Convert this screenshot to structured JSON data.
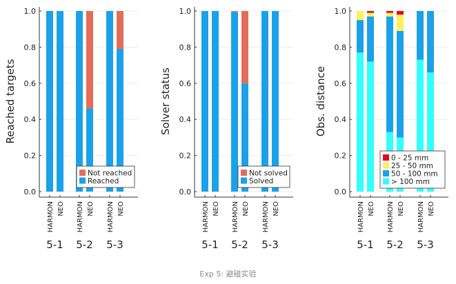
{
  "caption": "Exp 5: 避碰实验",
  "colors": {
    "blue": "#1ba1e9",
    "orange": "#e26d5a",
    "cyan": "#33fefe",
    "yellow": "#ffef5c",
    "red": "#e3081d",
    "axis": "#333333",
    "grid": "#ececec"
  },
  "chart_data": [
    {
      "type": "bar",
      "stacked": true,
      "ylabel": "Reached targets",
      "ylim": [
        0,
        1
      ],
      "yticks": [
        "0.0",
        "0.2",
        "0.4",
        "0.6",
        "0.8",
        "1.0"
      ],
      "categories": [
        "HARMON",
        "NEO",
        "HARMON",
        "NEO",
        "HARMON",
        "NEO"
      ],
      "groups": [
        "5-1",
        "5-2",
        "5-3"
      ],
      "grid": true,
      "legend_position": "bottom-right",
      "series": [
        {
          "name": "Reached",
          "color": "#1ba1e9",
          "values": [
            1.0,
            1.0,
            1.0,
            0.46,
            1.0,
            0.79
          ]
        },
        {
          "name": "Not reached",
          "color": "#e26d5a",
          "values": [
            0,
            0,
            0,
            0.54,
            0,
            0.21
          ]
        }
      ],
      "legend": [
        "Not reached",
        "Reached"
      ]
    },
    {
      "type": "bar",
      "stacked": true,
      "ylabel": "Solver status",
      "ylim": [
        0,
        1
      ],
      "yticks": [
        "0.0",
        "0.2",
        "0.4",
        "0.6",
        "0.8",
        "1.0"
      ],
      "categories": [
        "HARMON",
        "NEO",
        "HARMON",
        "NEO",
        "HARMON",
        "NEO"
      ],
      "groups": [
        "5-1",
        "5-2",
        "5-3"
      ],
      "grid": true,
      "legend_position": "bottom-right",
      "series": [
        {
          "name": "Solved",
          "color": "#1ba1e9",
          "values": [
            1.0,
            1.0,
            0.995,
            0.6,
            1.0,
            1.0
          ]
        },
        {
          "name": "Not solved",
          "color": "#e26d5a",
          "values": [
            0,
            0,
            0.005,
            0.4,
            0,
            0
          ]
        }
      ],
      "legend": [
        "Not solved",
        "Solved"
      ]
    },
    {
      "type": "bar",
      "stacked": true,
      "ylabel": "Obs. distance",
      "ylim": [
        0,
        1
      ],
      "yticks": [
        "0.0",
        "0.2",
        "0.4",
        "0.6",
        "0.8",
        "1.0"
      ],
      "categories": [
        "HARMON",
        "NEO",
        "HARMON",
        "NEO",
        "HARMON",
        "NEO"
      ],
      "groups": [
        "5-1",
        "5-2",
        "5-3"
      ],
      "grid": true,
      "legend_position": "bottom-right",
      "series": [
        {
          "name": "> 100 mm",
          "color": "#33fefe",
          "values": [
            0.77,
            0.72,
            0.33,
            0.3,
            0.73,
            0.66
          ]
        },
        {
          "name": "50 - 100 mm",
          "color": "#1ba1e9",
          "values": [
            0.18,
            0.25,
            0.64,
            0.59,
            0.27,
            0.34
          ]
        },
        {
          "name": "25 -   50 mm",
          "color": "#ffef5c",
          "values": [
            0.05,
            0.02,
            0.02,
            0.09,
            0,
            0
          ]
        },
        {
          "name": "0 -   25 mm",
          "color": "#e3081d",
          "values": [
            0,
            0.01,
            0.01,
            0.02,
            0,
            0
          ]
        }
      ],
      "legend": [
        "0 -   25 mm",
        "25 -   50 mm",
        "50 - 100 mm",
        "> 100 mm"
      ]
    }
  ]
}
